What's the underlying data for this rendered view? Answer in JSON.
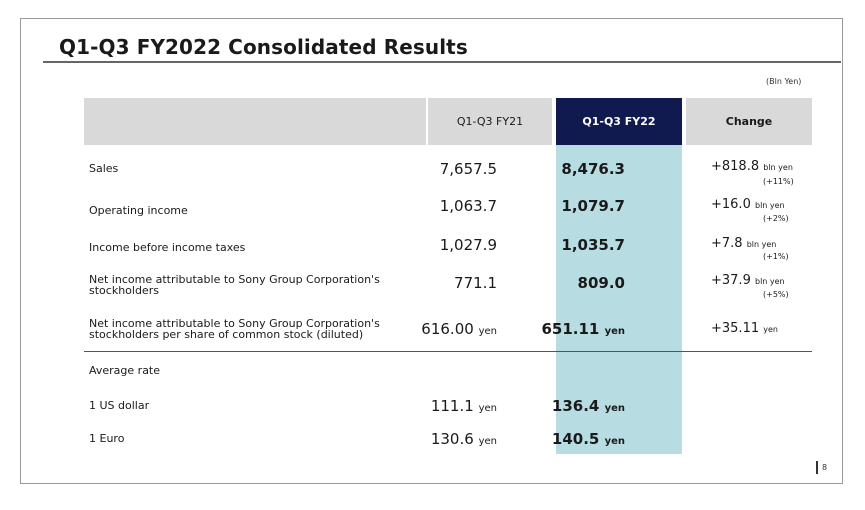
{
  "title": "Q1-Q3 FY2022 Consolidated Results",
  "unit_note": "(Bln Yen)",
  "columns": {
    "fy21": "Q1-Q3 FY21",
    "fy22": "Q1-Q3 FY22",
    "change": "Change"
  },
  "rows": [
    {
      "label": "Sales",
      "fy21": "7,657.5",
      "fy22": "8,476.3",
      "change": "+818.8",
      "change_unit": "bln yen",
      "change_pct": "(+11%)"
    },
    {
      "label": "Operating income",
      "fy21": "1,063.7",
      "fy22": "1,079.7",
      "change": "+16.0",
      "change_unit": "bln yen",
      "change_pct": "(+2%)"
    },
    {
      "label": "Income before income taxes",
      "fy21": "1,027.9",
      "fy22": "1,035.7",
      "change": "+7.8",
      "change_unit": "bln yen",
      "change_pct": "(+1%)"
    },
    {
      "label_line1": "Net income attributable to Sony Group Corporation's",
      "label_line2": "stockholders",
      "fy21": "771.1",
      "fy22": "809.0",
      "change": "+37.9",
      "change_unit": "bln yen",
      "change_pct": "(+5%)"
    },
    {
      "label_line1": "Net income attributable to Sony Group Corporation's",
      "label_line2": "stockholders per share of common stock (diluted)",
      "fy21": "616.00",
      "fy22": "651.11",
      "change": "+35.11",
      "suffix": "yen"
    }
  ],
  "average_rate": {
    "label": "Average rate",
    "items": [
      {
        "label": "1 US dollar",
        "fy21": "111.1",
        "fy22": "136.4",
        "suffix": "yen"
      },
      {
        "label": "1 Euro",
        "fy21": "130.6",
        "fy22": "140.5",
        "suffix": "yen"
      }
    ]
  },
  "page_number": "8"
}
